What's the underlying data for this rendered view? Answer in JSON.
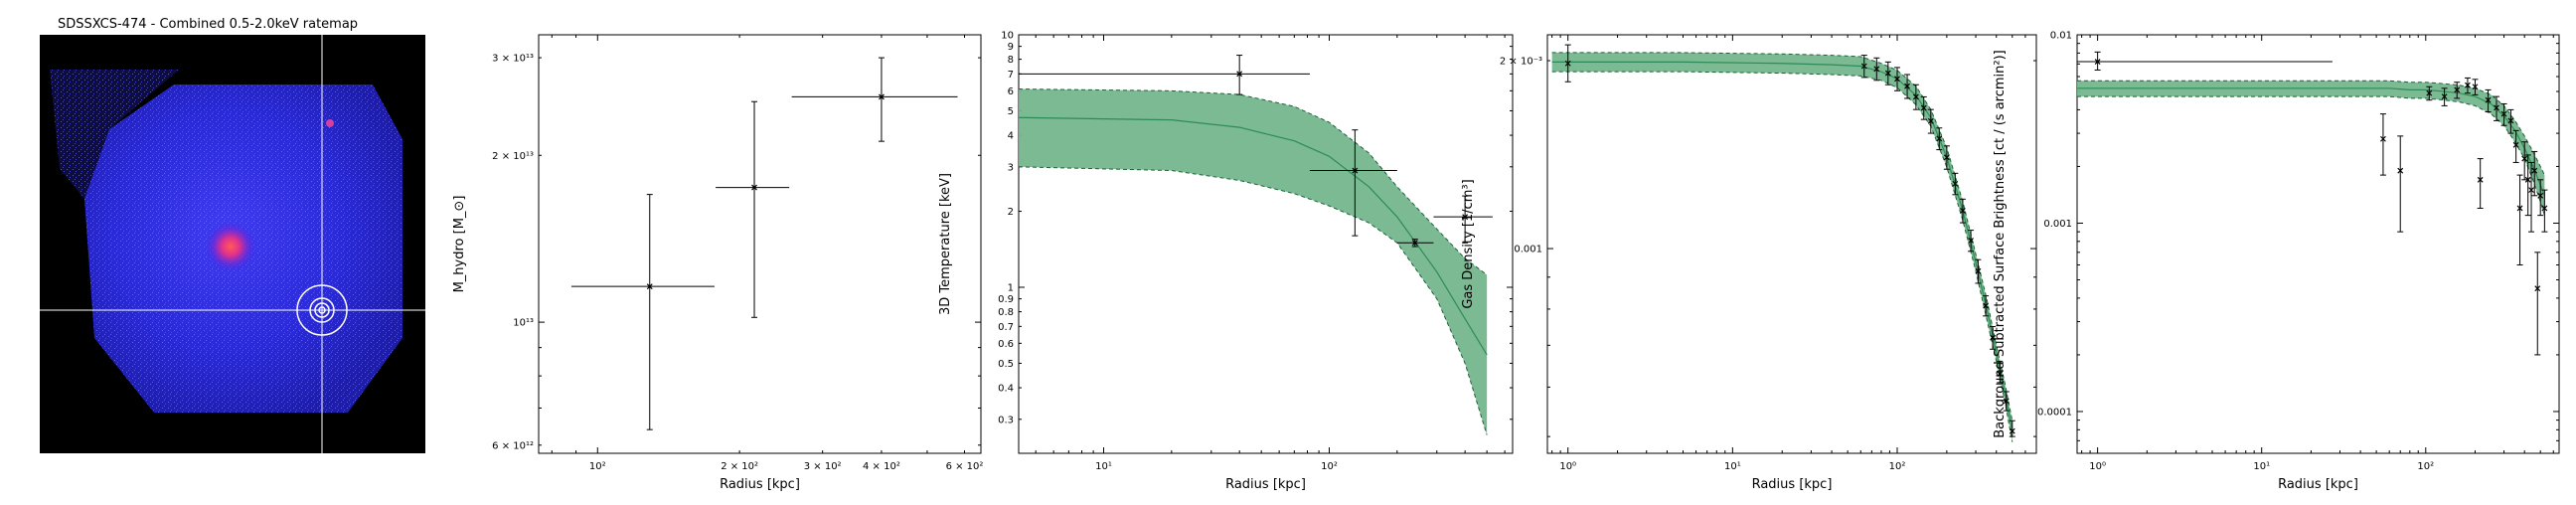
{
  "figure": {
    "ratemap_title": "SDSSXCS-474 - Combined 0.5-2.0keV ratemap"
  },
  "chart_data": [
    {
      "type": "scatter",
      "panel": "hydrostatic-mass",
      "xlabel": "Radius [kpc]",
      "ylabel": "M_hydro [M_⊙]",
      "xscale": "log",
      "yscale": "log",
      "xlim": [
        75,
        650
      ],
      "ylim": [
        5800000000000.0,
        33000000000000.0
      ],
      "xticks": [
        100,
        200,
        300,
        400,
        600
      ],
      "xtick_labels": [
        "10^2",
        "2 × 10^2",
        "3 × 10^2",
        "4 × 10^2",
        "6 × 10^2"
      ],
      "yticks": [
        6000000000000.0,
        10000000000000.0,
        20000000000000.0,
        30000000000000.0
      ],
      "ytick_labels": [
        "6 × 10^12",
        "10^13",
        "2 × 10^13",
        "3 × 10^13"
      ],
      "points": [
        {
          "x": 129,
          "xlo": 88,
          "xhi": 177,
          "y": 11600000000000.0,
          "ylo": 6400000000000.0,
          "yhi": 17000000000000.0
        },
        {
          "x": 215,
          "xlo": 178,
          "xhi": 255,
          "y": 17500000000000.0,
          "ylo": 10200000000000.0,
          "yhi": 25000000000000.0
        },
        {
          "x": 400,
          "xlo": 258,
          "xhi": 580,
          "y": 25500000000000.0,
          "ylo": 21200000000000.0,
          "yhi": 30000000000000.0
        }
      ]
    },
    {
      "type": "line",
      "panel": "temperature",
      "xlabel": "Radius [kpc]",
      "ylabel": "3D Temperature [keV]",
      "xscale": "log",
      "yscale": "log",
      "xlim": [
        4.2,
        650
      ],
      "ylim": [
        0.22,
        10
      ],
      "xticks": [
        10,
        100
      ],
      "xtick_labels": [
        "10^1",
        "10^2"
      ],
      "yticks": [
        0.3,
        0.4,
        0.5,
        0.6,
        0.7,
        0.8,
        0.9,
        1,
        2,
        3,
        4,
        5,
        6,
        7,
        8,
        9,
        10
      ],
      "ytick_labels": [
        "0.3",
        "0.4",
        "0.5",
        "0.6",
        "0.7",
        "0.8",
        "0.9",
        "1",
        "2",
        "3",
        "4",
        "5",
        "6",
        "7",
        "8",
        "9",
        "10"
      ],
      "points": [
        {
          "x": 40,
          "xlo": 4.2,
          "xhi": 82,
          "y": 7.0,
          "ylo": 5.8,
          "yhi": 8.3
        },
        {
          "x": 130,
          "xlo": 82,
          "xhi": 200,
          "y": 2.9,
          "ylo": 1.6,
          "yhi": 4.2
        },
        {
          "x": 240,
          "xlo": 200,
          "xhi": 290,
          "y": 1.5,
          "ylo": 1.45,
          "yhi": 1.55
        },
        {
          "x": 400,
          "xlo": 290,
          "xhi": 530,
          "y": 1.9,
          "ylo": 1.5,
          "yhi": 2.3
        }
      ],
      "model_x": [
        4.2,
        20,
        40,
        70,
        100,
        150,
        200,
        300,
        400,
        500
      ],
      "model_y": [
        4.7,
        4.6,
        4.3,
        3.8,
        3.3,
        2.5,
        1.9,
        1.15,
        0.75,
        0.54
      ],
      "model_lo": [
        3.0,
        2.9,
        2.65,
        2.35,
        2.1,
        1.8,
        1.5,
        0.9,
        0.5,
        0.26
      ],
      "model_hi": [
        6.1,
        6.0,
        5.8,
        5.2,
        4.5,
        3.4,
        2.5,
        1.7,
        1.3,
        1.12
      ]
    },
    {
      "type": "line",
      "panel": "gas-density",
      "xlabel": "Radius [kpc]",
      "ylabel": "Gas Density [1/cm^3]",
      "xscale": "log",
      "yscale": "log",
      "xlim": [
        0.75,
        700
      ],
      "ylim": [
        0.00047,
        0.0022
      ],
      "xticks": [
        1,
        10,
        100
      ],
      "xtick_labels": [
        "10^0",
        "10^1",
        "10^2"
      ],
      "yticks": [
        0.001,
        0.002
      ],
      "ytick_labels": [
        "0.001",
        "2 × 10^-3"
      ],
      "points": [
        {
          "x": 1.0,
          "y": 0.00198,
          "ylo": 0.00185,
          "yhi": 0.00212
        },
        {
          "x": 63,
          "y": 0.00196,
          "ylo": 0.00188,
          "yhi": 0.00204
        },
        {
          "x": 75,
          "y": 0.00194,
          "ylo": 0.00186,
          "yhi": 0.00202
        },
        {
          "x": 88,
          "y": 0.00191,
          "ylo": 0.00183,
          "yhi": 0.00199
        },
        {
          "x": 100,
          "y": 0.00187,
          "ylo": 0.00179,
          "yhi": 0.00195
        },
        {
          "x": 115,
          "y": 0.00182,
          "ylo": 0.00174,
          "yhi": 0.0019
        },
        {
          "x": 130,
          "y": 0.00175,
          "ylo": 0.00167,
          "yhi": 0.00183
        },
        {
          "x": 145,
          "y": 0.00168,
          "ylo": 0.00161,
          "yhi": 0.00175
        },
        {
          "x": 160,
          "y": 0.0016,
          "ylo": 0.00153,
          "yhi": 0.00167
        },
        {
          "x": 180,
          "y": 0.0015,
          "ylo": 0.00144,
          "yhi": 0.00156
        },
        {
          "x": 200,
          "y": 0.0014,
          "ylo": 0.00134,
          "yhi": 0.00146
        },
        {
          "x": 225,
          "y": 0.00127,
          "ylo": 0.00122,
          "yhi": 0.00132
        },
        {
          "x": 250,
          "y": 0.00115,
          "ylo": 0.0011,
          "yhi": 0.0012
        },
        {
          "x": 280,
          "y": 0.00103,
          "ylo": 0.00099,
          "yhi": 0.00107
        },
        {
          "x": 310,
          "y": 0.00092,
          "ylo": 0.00088,
          "yhi": 0.00096
        },
        {
          "x": 345,
          "y": 0.00081,
          "ylo": 0.00078,
          "yhi": 0.00084
        },
        {
          "x": 380,
          "y": 0.00072,
          "ylo": 0.00069,
          "yhi": 0.00075
        },
        {
          "x": 420,
          "y": 0.00063,
          "ylo": 0.00061,
          "yhi": 0.00066
        },
        {
          "x": 460,
          "y": 0.00057,
          "ylo": 0.00055,
          "yhi": 0.00059
        },
        {
          "x": 500,
          "y": 0.00051,
          "ylo": 0.0005,
          "yhi": 0.00053
        }
      ],
      "model_x": [
        0.8,
        1,
        5,
        20,
        40,
        60,
        80,
        100,
        130,
        160,
        200,
        250,
        300,
        350,
        400,
        450,
        500
      ],
      "model_y": [
        0.00199,
        0.00199,
        0.00199,
        0.00198,
        0.00197,
        0.00196,
        0.00192,
        0.00187,
        0.00176,
        0.00162,
        0.0014,
        0.00115,
        0.00095,
        0.0008,
        0.00068,
        0.00059,
        0.00051
      ],
      "model_lo": [
        0.00192,
        0.00192,
        0.00192,
        0.00191,
        0.0019,
        0.00189,
        0.00186,
        0.00181,
        0.0017,
        0.00157,
        0.00135,
        0.00111,
        0.00092,
        0.00077,
        0.00066,
        0.00057,
        0.00049
      ],
      "model_hi": [
        0.00206,
        0.00206,
        0.00206,
        0.00205,
        0.00204,
        0.00203,
        0.00198,
        0.00193,
        0.00182,
        0.00167,
        0.00145,
        0.00119,
        0.00098,
        0.00083,
        0.0007,
        0.00061,
        0.00053
      ]
    },
    {
      "type": "line",
      "panel": "surface-brightness",
      "xlabel": "Radius [kpc]",
      "ylabel": "Background Subtracted Surface Brightness [ct / (s arcmin²)]",
      "xscale": "log",
      "yscale": "log",
      "xlim": [
        0.75,
        650
      ],
      "ylim": [
        6e-05,
        0.01
      ],
      "xticks": [
        1,
        10,
        100
      ],
      "xtick_labels": [
        "10^0",
        "10^1",
        "10^2"
      ],
      "yticks": [
        0.0001,
        0.001,
        0.01
      ],
      "ytick_labels": [
        "0.0001",
        "0.001",
        "0.01"
      ],
      "points": [
        {
          "x": 1.0,
          "xlo": 0.75,
          "xhi": 27,
          "y": 0.0072,
          "ylo": 0.0065,
          "yhi": 0.0081
        },
        {
          "x": 55,
          "y": 0.0028,
          "ylo": 0.0018,
          "yhi": 0.0038
        },
        {
          "x": 70,
          "y": 0.0019,
          "ylo": 0.0009,
          "yhi": 0.0029
        },
        {
          "x": 105,
          "y": 0.0049,
          "ylo": 0.0045,
          "yhi": 0.0053
        },
        {
          "x": 130,
          "y": 0.0047,
          "ylo": 0.0042,
          "yhi": 0.0052
        },
        {
          "x": 155,
          "y": 0.0051,
          "ylo": 0.0046,
          "yhi": 0.0056
        },
        {
          "x": 180,
          "y": 0.0054,
          "ylo": 0.0049,
          "yhi": 0.0059
        },
        {
          "x": 200,
          "y": 0.0053,
          "ylo": 0.0048,
          "yhi": 0.0058
        },
        {
          "x": 215,
          "y": 0.0017,
          "ylo": 0.0012,
          "yhi": 0.0022
        },
        {
          "x": 240,
          "y": 0.0045,
          "ylo": 0.0039,
          "yhi": 0.0051
        },
        {
          "x": 270,
          "y": 0.0041,
          "ylo": 0.0035,
          "yhi": 0.0047
        },
        {
          "x": 300,
          "y": 0.0038,
          "ylo": 0.0033,
          "yhi": 0.0043
        },
        {
          "x": 330,
          "y": 0.0035,
          "ylo": 0.003,
          "yhi": 0.004
        },
        {
          "x": 355,
          "y": 0.0026,
          "ylo": 0.0021,
          "yhi": 0.0031
        },
        {
          "x": 375,
          "y": 0.0012,
          "ylo": 0.0006,
          "yhi": 0.0018
        },
        {
          "x": 400,
          "y": 0.0022,
          "ylo": 0.0017,
          "yhi": 0.0027
        },
        {
          "x": 420,
          "y": 0.0017,
          "ylo": 0.0011,
          "yhi": 0.0023
        },
        {
          "x": 440,
          "y": 0.0015,
          "ylo": 0.0009,
          "yhi": 0.0021
        },
        {
          "x": 460,
          "y": 0.0019,
          "ylo": 0.0014,
          "yhi": 0.0024
        },
        {
          "x": 480,
          "y": 0.00045,
          "ylo": 0.0002,
          "yhi": 0.0007
        },
        {
          "x": 500,
          "y": 0.0014,
          "ylo": 0.0011,
          "yhi": 0.0017
        },
        {
          "x": 530,
          "y": 0.0012,
          "ylo": 0.0009,
          "yhi": 0.0015
        }
      ],
      "model_x": [
        0.75,
        1,
        5,
        20,
        40,
        60,
        80,
        100,
        130,
        160,
        200,
        250,
        300,
        350,
        400,
        450,
        500,
        530
      ],
      "model_y": [
        0.0052,
        0.0052,
        0.0052,
        0.0052,
        0.0052,
        0.0052,
        0.0051,
        0.0051,
        0.005,
        0.0049,
        0.0047,
        0.0043,
        0.0037,
        0.0031,
        0.0025,
        0.002,
        0.0016,
        0.0014
      ],
      "model_lo": [
        0.0047,
        0.0047,
        0.0047,
        0.0047,
        0.0047,
        0.0047,
        0.0046,
        0.0046,
        0.0045,
        0.0044,
        0.0042,
        0.0038,
        0.0033,
        0.0027,
        0.0022,
        0.0017,
        0.0013,
        0.0011
      ],
      "model_hi": [
        0.0057,
        0.0057,
        0.0057,
        0.0057,
        0.0057,
        0.0057,
        0.0056,
        0.0056,
        0.0055,
        0.0054,
        0.0052,
        0.0048,
        0.0042,
        0.0035,
        0.0029,
        0.0024,
        0.002,
        0.0018
      ]
    }
  ]
}
